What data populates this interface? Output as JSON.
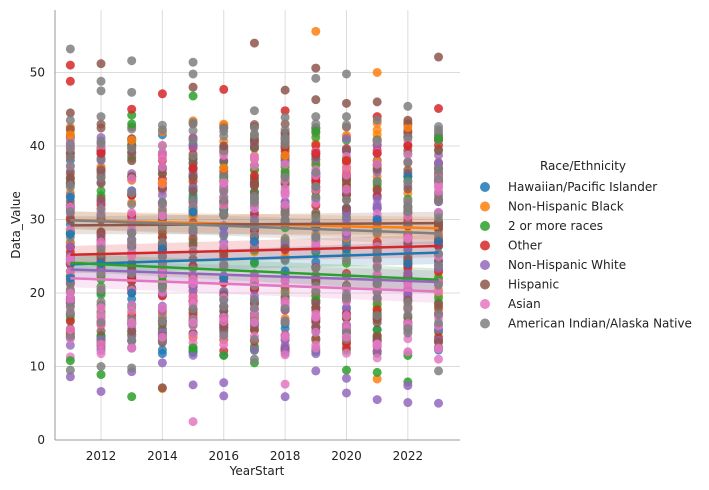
{
  "chart_data": {
    "type": "scatter",
    "title": "",
    "xlabel": "YearStart",
    "ylabel": "Data_Value",
    "xlim": [
      2010.5,
      2023.7
    ],
    "ylim": [
      0,
      58.5
    ],
    "xticks": [
      2012,
      2014,
      2016,
      2018,
      2020,
      2022
    ],
    "yticks": [
      0,
      10,
      20,
      30,
      40,
      50
    ],
    "grid": true,
    "legend_title": "Race/Ethnicity",
    "legend_position": "right",
    "years": [
      2011,
      2012,
      2013,
      2014,
      2015,
      2016,
      2017,
      2018,
      2019,
      2020,
      2021,
      2022,
      2023
    ],
    "series": [
      {
        "name": "Hawaiian/Pacific Islander",
        "color": "#1f77b4",
        "points": [
          [
            2011,
            22
          ],
          [
            2011,
            28
          ],
          [
            2011,
            33
          ],
          [
            2012,
            24
          ],
          [
            2013,
            20
          ],
          [
            2014,
            26
          ],
          [
            2015,
            31
          ],
          [
            2016,
            22
          ],
          [
            2017,
            27
          ],
          [
            2018,
            23
          ],
          [
            2019,
            29
          ],
          [
            2020,
            26
          ],
          [
            2021,
            30
          ],
          [
            2022,
            24
          ],
          [
            2023,
            27
          ]
        ],
        "trend": [
          [
            2011,
            23.9
          ],
          [
            2023,
            25.5
          ]
        ]
      },
      {
        "name": "Non-Hispanic Black",
        "color": "#ff7f0e",
        "points": [
          [
            2011,
            41.5
          ],
          [
            2013,
            40.8
          ],
          [
            2014,
            7
          ],
          [
            2014,
            35
          ],
          [
            2016,
            37
          ],
          [
            2018,
            38.7
          ],
          [
            2019,
            55.6
          ],
          [
            2020,
            38
          ],
          [
            2021,
            50
          ],
          [
            2021,
            8.3
          ],
          [
            2022,
            42.5
          ]
        ],
        "trend": [
          [
            2011,
            29.9
          ],
          [
            2023,
            28.8
          ]
        ]
      },
      {
        "name": "2 or more races",
        "color": "#2ca02c",
        "points": [
          [
            2011,
            10.8
          ],
          [
            2012,
            8.9
          ],
          [
            2013,
            44.2
          ],
          [
            2013,
            43
          ],
          [
            2013,
            5.9
          ],
          [
            2015,
            46.8
          ],
          [
            2015,
            12.5
          ],
          [
            2016,
            11.5
          ],
          [
            2017,
            10.5
          ],
          [
            2019,
            42
          ],
          [
            2020,
            9.5
          ],
          [
            2021,
            9.2
          ],
          [
            2022,
            11.5
          ],
          [
            2022,
            7.9
          ],
          [
            2023,
            41
          ]
        ],
        "trend": [
          [
            2011,
            24.1
          ],
          [
            2023,
            21.8
          ]
        ]
      },
      {
        "name": "Other",
        "color": "#d62728",
        "points": [
          [
            2011,
            51
          ],
          [
            2011,
            48.8
          ],
          [
            2012,
            39
          ],
          [
            2013,
            45
          ],
          [
            2014,
            47.1
          ],
          [
            2015,
            37
          ],
          [
            2016,
            47.7
          ],
          [
            2017,
            36
          ],
          [
            2018,
            44.8
          ],
          [
            2019,
            39
          ],
          [
            2020,
            38
          ],
          [
            2021,
            44
          ],
          [
            2021,
            39
          ],
          [
            2022,
            40
          ],
          [
            2023,
            45.1
          ]
        ],
        "trend": [
          [
            2011,
            25.2
          ],
          [
            2023,
            26.4
          ]
        ]
      },
      {
        "name": "Non-Hispanic White",
        "color": "#9467bd",
        "points": [
          [
            2011,
            8.6
          ],
          [
            2012,
            6.6
          ],
          [
            2013,
            9.3
          ],
          [
            2014,
            10.5
          ],
          [
            2015,
            7.5
          ],
          [
            2016,
            6
          ],
          [
            2016,
            7.8
          ],
          [
            2018,
            5.9
          ],
          [
            2019,
            9.4
          ],
          [
            2020,
            6.4
          ],
          [
            2020,
            8.4
          ],
          [
            2021,
            5.5
          ],
          [
            2022,
            5.1
          ],
          [
            2022,
            7.4
          ],
          [
            2023,
            5
          ]
        ],
        "trend": [
          [
            2011,
            23.2
          ],
          [
            2023,
            21.5
          ]
        ]
      },
      {
        "name": "Hispanic",
        "color": "#8c564b",
        "points": [
          [
            2011,
            44.5
          ],
          [
            2012,
            51.2
          ],
          [
            2013,
            38
          ],
          [
            2014,
            7.1
          ],
          [
            2015,
            48
          ],
          [
            2016,
            40
          ],
          [
            2017,
            54
          ],
          [
            2018,
            47.6
          ],
          [
            2019,
            50.6
          ],
          [
            2019,
            46.3
          ],
          [
            2020,
            45.8
          ],
          [
            2021,
            46
          ],
          [
            2022,
            43.5
          ],
          [
            2023,
            52.1
          ]
        ],
        "trend": [
          [
            2011,
            29.2
          ],
          [
            2023,
            29.5
          ]
        ]
      },
      {
        "name": "Asian",
        "color": "#e377c2",
        "points": [
          [
            2011,
            15
          ],
          [
            2011,
            20
          ],
          [
            2012,
            13
          ],
          [
            2012,
            18
          ],
          [
            2013,
            12.5
          ],
          [
            2013,
            16
          ],
          [
            2014,
            14
          ],
          [
            2014,
            30.5
          ],
          [
            2015,
            2.5
          ],
          [
            2015,
            16
          ],
          [
            2016,
            13
          ],
          [
            2017,
            16
          ],
          [
            2018,
            7.6
          ],
          [
            2018,
            14
          ],
          [
            2019,
            12.5
          ],
          [
            2020,
            14
          ],
          [
            2021,
            13
          ],
          [
            2022,
            12
          ],
          [
            2023,
            11
          ]
        ],
        "trend": [
          [
            2011,
            22
          ],
          [
            2023,
            20.2
          ]
        ]
      },
      {
        "name": "American Indian/Alaska Native",
        "color": "#7f7f7f",
        "points": [
          [
            2011,
            53.2
          ],
          [
            2011,
            43.5
          ],
          [
            2012,
            48.8
          ],
          [
            2012,
            47.5
          ],
          [
            2012,
            44
          ],
          [
            2013,
            51.6
          ],
          [
            2013,
            47.3
          ],
          [
            2014,
            42.2
          ],
          [
            2015,
            51.4
          ],
          [
            2015,
            49.8
          ],
          [
            2015,
            43.2
          ],
          [
            2016,
            42
          ],
          [
            2017,
            44.8
          ],
          [
            2017,
            41.5
          ],
          [
            2018,
            43.9
          ],
          [
            2018,
            41
          ],
          [
            2019,
            49.2
          ],
          [
            2019,
            44
          ],
          [
            2020,
            49.8
          ],
          [
            2020,
            44
          ],
          [
            2021,
            43.5
          ],
          [
            2022,
            45.4
          ],
          [
            2023,
            42.2
          ],
          [
            2011,
            9.5
          ],
          [
            2012,
            10
          ],
          [
            2013,
            9.8
          ],
          [
            2017,
            11
          ],
          [
            2023,
            9.4
          ]
        ],
        "trend": [
          [
            2011,
            29.9
          ],
          [
            2023,
            28.1
          ]
        ]
      }
    ]
  }
}
